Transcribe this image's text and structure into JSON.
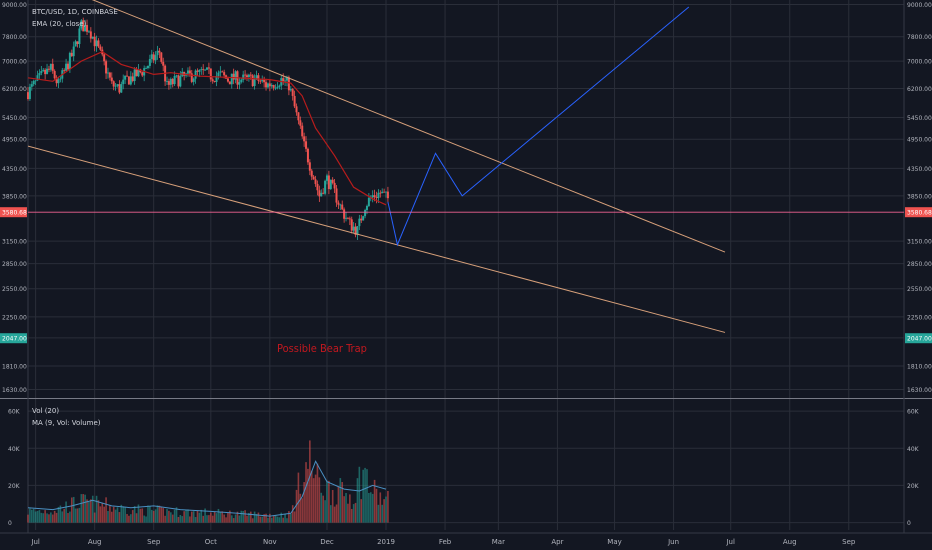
{
  "header": {
    "symbol_line": "BTC/USD, 1D, COINBASE",
    "ema_line": "EMA (20, close)",
    "vol_line": "Vol (20)",
    "vol_ma_line": "MA (9, Vol: Volume)"
  },
  "annotation": {
    "text": "Possible Bear Trap"
  },
  "colors": {
    "background": "#131722",
    "grid": "#2a2e39",
    "up": "#26a69a",
    "down": "#ef5350",
    "ema": "#b71c1c",
    "trendline": "#d7a07a",
    "projection": "#2962ff",
    "price_line": "#f06292",
    "annotation": "#c2181f"
  },
  "chart_data": [
    {
      "type": "candlestick",
      "title": "BTC/USD, 1D, COINBASE",
      "x_axis": {
        "start": "2018-06-27",
        "end": "2019-09-30",
        "tick_labels": [
          "Jul",
          "Aug",
          "Sep",
          "Oct",
          "Nov",
          "Dec",
          "2019",
          "Feb",
          "Mar",
          "Apr",
          "May",
          "Jun",
          "Jul",
          "Aug",
          "Sep"
        ],
        "tick_dates": [
          "2018-07-01",
          "2018-08-01",
          "2018-09-01",
          "2018-10-01",
          "2018-11-01",
          "2018-12-01",
          "2019-01-01",
          "2019-02-01",
          "2019-03-01",
          "2019-04-01",
          "2019-05-01",
          "2019-06-01",
          "2019-07-01",
          "2019-08-01",
          "2019-09-01"
        ]
      },
      "y_axis": {
        "scale": "log",
        "ylim": [
          1570,
          9100
        ],
        "tick_labels": [
          "1630.00",
          "1810.00",
          "2050.00",
          "2250.00",
          "2550.00",
          "2850.00",
          "3150.00",
          "3850.00",
          "4350.00",
          "4950.00",
          "5450.00",
          "6200.00",
          "7000.00",
          "7800.00",
          "9000.00"
        ],
        "tick_values": [
          1630,
          1810,
          2050,
          2250,
          2550,
          2850,
          3150,
          3850,
          4350,
          4950,
          5450,
          6200,
          7000,
          7800,
          9000
        ]
      },
      "price_labels": [
        {
          "text": "3580.68",
          "value": 3580.68,
          "color": "#ef5350"
        },
        {
          "text": "2047.00",
          "value": 2047,
          "color": "#26a69a"
        }
      ],
      "close_series": [
        [
          "2018-06-27",
          6100
        ],
        [
          "2018-07-01",
          6350
        ],
        [
          "2018-07-05",
          6600
        ],
        [
          "2018-07-09",
          6750
        ],
        [
          "2018-07-13",
          6300
        ],
        [
          "2018-07-17",
          6800
        ],
        [
          "2018-07-21",
          7300
        ],
        [
          "2018-07-25",
          8200
        ],
        [
          "2018-07-29",
          8100
        ],
        [
          "2018-08-02",
          7500
        ],
        [
          "2018-08-06",
          6900
        ],
        [
          "2018-08-10",
          6300
        ],
        [
          "2018-08-14",
          6200
        ],
        [
          "2018-08-18",
          6450
        ],
        [
          "2018-08-22",
          6550
        ],
        [
          "2018-08-26",
          6700
        ],
        [
          "2018-08-30",
          6950
        ],
        [
          "2018-09-04",
          7300
        ],
        [
          "2018-09-08",
          6250
        ],
        [
          "2018-09-12",
          6400
        ],
        [
          "2018-09-16",
          6500
        ],
        [
          "2018-09-20",
          6550
        ],
        [
          "2018-09-24",
          6600
        ],
        [
          "2018-09-28",
          6650
        ],
        [
          "2018-10-02",
          6550
        ],
        [
          "2018-10-06",
          6580
        ],
        [
          "2018-10-10",
          6450
        ],
        [
          "2018-10-14",
          6500
        ],
        [
          "2018-10-18",
          6450
        ],
        [
          "2018-10-22",
          6450
        ],
        [
          "2018-10-26",
          6430
        ],
        [
          "2018-10-30",
          6300
        ],
        [
          "2018-11-03",
          6350
        ],
        [
          "2018-11-07",
          6450
        ],
        [
          "2018-11-11",
          6300
        ],
        [
          "2018-11-15",
          5500
        ],
        [
          "2018-11-19",
          4800
        ],
        [
          "2018-11-23",
          4300
        ],
        [
          "2018-11-27",
          3850
        ],
        [
          "2018-12-01",
          4150
        ],
        [
          "2018-12-05",
          3900
        ],
        [
          "2018-12-09",
          3600
        ],
        [
          "2018-12-13",
          3400
        ],
        [
          "2018-12-17",
          3300
        ],
        [
          "2018-12-21",
          3700
        ],
        [
          "2018-12-25",
          3850
        ],
        [
          "2018-12-29",
          3900
        ],
        [
          "2019-01-02",
          3800
        ]
      ],
      "ema_series": [
        [
          "2018-06-27",
          6500
        ],
        [
          "2018-07-10",
          6400
        ],
        [
          "2018-07-25",
          7000
        ],
        [
          "2018-08-05",
          7300
        ],
        [
          "2018-08-15",
          6900
        ],
        [
          "2018-09-01",
          6600
        ],
        [
          "2018-09-10",
          6650
        ],
        [
          "2018-09-25",
          6550
        ],
        [
          "2018-10-15",
          6500
        ],
        [
          "2018-11-01",
          6450
        ],
        [
          "2018-11-12",
          6350
        ],
        [
          "2018-11-18",
          6000
        ],
        [
          "2018-11-25",
          5200
        ],
        [
          "2018-12-05",
          4600
        ],
        [
          "2018-12-15",
          4000
        ],
        [
          "2018-12-25",
          3800
        ],
        [
          "2019-01-01",
          3700
        ]
      ],
      "trendlines": [
        {
          "name": "upper",
          "points": [
            [
              "2018-07-18",
              9600
            ],
            [
              "2019-06-28",
              3000
            ]
          ]
        },
        {
          "name": "lower",
          "points": [
            [
              "2018-06-27",
              4800
            ],
            [
              "2019-06-28",
              2100
            ]
          ]
        }
      ],
      "projection_path": [
        [
          "2019-01-02",
          3750
        ],
        [
          "2019-01-07",
          3100
        ],
        [
          "2019-01-27",
          4650
        ],
        [
          "2019-02-10",
          3850
        ],
        [
          "2019-06-09",
          8900
        ]
      ]
    },
    {
      "type": "bar",
      "title": "Vol (20)",
      "y_axis": {
        "tick_labels": [
          "0",
          "20K",
          "40K",
          "60K"
        ],
        "tick_values": [
          0,
          20000,
          40000,
          60000
        ],
        "ylim": [
          -4000,
          66000
        ]
      },
      "volume_series": [
        [
          "2018-06-27",
          6000
        ],
        [
          "2018-07-10",
          6500
        ],
        [
          "2018-07-25",
          11000
        ],
        [
          "2018-08-05",
          9500
        ],
        [
          "2018-08-15",
          7500
        ],
        [
          "2018-08-28",
          6500
        ],
        [
          "2018-09-08",
          6000
        ],
        [
          "2018-09-20",
          5500
        ],
        [
          "2018-10-05",
          5000
        ],
        [
          "2018-10-20",
          4500
        ],
        [
          "2018-11-05",
          4000
        ],
        [
          "2018-11-12",
          4500
        ],
        [
          "2018-11-18",
          25000
        ],
        [
          "2018-11-22",
          33000
        ],
        [
          "2018-11-26",
          22000
        ],
        [
          "2018-12-01",
          18000
        ],
        [
          "2018-12-08",
          16000
        ],
        [
          "2018-12-15",
          14000
        ],
        [
          "2018-12-20",
          28000
        ],
        [
          "2018-12-24",
          18000
        ],
        [
          "2018-12-30",
          12000
        ]
      ],
      "ma_series": [
        [
          "2018-06-27",
          8000
        ],
        [
          "2018-07-10",
          7000
        ],
        [
          "2018-07-20",
          9000
        ],
        [
          "2018-07-31",
          12000
        ],
        [
          "2018-08-10",
          9000
        ],
        [
          "2018-08-20",
          8000
        ],
        [
          "2018-09-01",
          9000
        ],
        [
          "2018-09-15",
          7000
        ],
        [
          "2018-10-01",
          6000
        ],
        [
          "2018-10-15",
          5000
        ],
        [
          "2018-11-01",
          3500
        ],
        [
          "2018-11-12",
          5000
        ],
        [
          "2018-11-18",
          14000
        ],
        [
          "2018-11-25",
          33000
        ],
        [
          "2018-12-01",
          22000
        ],
        [
          "2018-12-10",
          18000
        ],
        [
          "2018-12-18",
          17000
        ],
        [
          "2018-12-25",
          20000
        ],
        [
          "2019-01-01",
          18000
        ]
      ]
    }
  ]
}
